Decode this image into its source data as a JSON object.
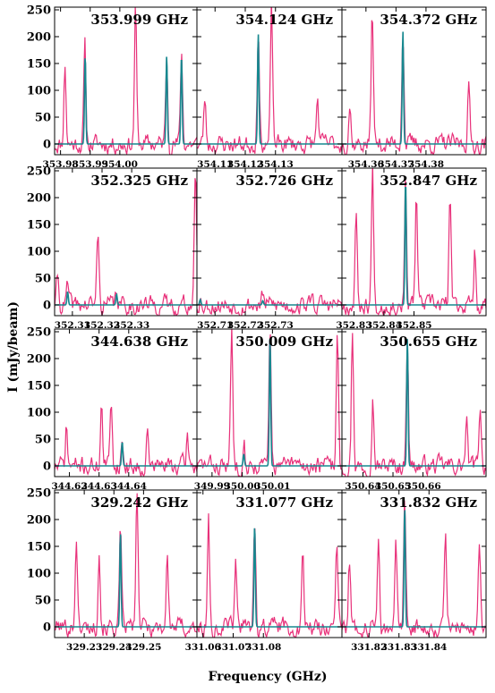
{
  "colors": {
    "observed": "#e8317a",
    "model": "#17888f",
    "axis": "#000000"
  },
  "chart_data": {
    "type": "line",
    "layout": "4x3 grid of spectral line panels",
    "xlabel": "Frequency (GHz)",
    "ylabel": "I (mJy/beam)",
    "ylim": [
      -20,
      255
    ],
    "y_ticks": [
      "0",
      "50",
      "100",
      "150",
      "200",
      "250"
    ],
    "series_legend": [],
    "panels": [
      {
        "title": "353.999 GHz",
        "xlim": [
          353.978,
          354.026
        ],
        "x_ticks": [
          "353.98",
          "353.99",
          "354.00"
        ],
        "x_tick_values": [
          353.98,
          353.99,
          354.0
        ],
        "model_peaks": [
          [
            353.9883,
            165
          ],
          [
            354.0158,
            165
          ],
          [
            354.0208,
            165
          ]
        ],
        "observed_peaks": [
          [
            353.9815,
            150
          ],
          [
            353.9882,
            180
          ],
          [
            354.0053,
            255
          ],
          [
            354.0158,
            163
          ],
          [
            354.0208,
            172
          ]
        ],
        "seed": 11
      },
      {
        "title": "354.124 GHz",
        "xlim": [
          354.104,
          354.152
        ],
        "x_ticks": [
          "354.11",
          "354.12",
          "354.13"
        ],
        "x_tick_values": [
          354.11,
          354.12,
          354.13
        ],
        "model_peaks": [
          [
            354.1243,
            205
          ]
        ],
        "observed_peaks": [
          [
            354.1066,
            85
          ],
          [
            354.1243,
            215
          ],
          [
            354.1287,
            255
          ],
          [
            354.1439,
            85
          ]
        ],
        "seed": 23
      },
      {
        "title": "354.372 GHz",
        "xlim": [
          354.352,
          354.4
        ],
        "x_ticks": [
          "354.36",
          "354.37",
          "354.38"
        ],
        "x_tick_values": [
          354.36,
          354.37,
          354.38
        ],
        "model_peaks": [
          [
            354.3723,
            210
          ]
        ],
        "observed_peaks": [
          [
            354.3546,
            75
          ],
          [
            354.3621,
            255
          ],
          [
            354.3723,
            215
          ],
          [
            354.3942,
            110
          ]
        ],
        "seed": 37
      },
      {
        "title": "352.325 GHz",
        "xlim": [
          352.304,
          352.352
        ],
        "x_ticks": [
          "352.31",
          "352.32",
          "352.33"
        ],
        "x_tick_values": [
          352.31,
          352.32,
          352.33
        ],
        "model_peaks": [
          [
            352.3084,
            25
          ],
          [
            352.3249,
            20
          ]
        ],
        "observed_peaks": [
          [
            352.305,
            55
          ],
          [
            352.3084,
            35
          ],
          [
            352.3186,
            140
          ],
          [
            352.3249,
            22
          ],
          [
            352.3515,
            255
          ]
        ],
        "seed": 41
      },
      {
        "title": "352.726 GHz",
        "xlim": [
          352.704,
          352.752
        ],
        "x_ticks": [
          "352.71",
          "352.72",
          "352.73"
        ],
        "x_tick_values": [
          352.71,
          352.72,
          352.73
        ],
        "model_peaks": [
          [
            352.7051,
            10
          ],
          [
            352.7258,
            8
          ]
        ],
        "observed_peaks": [
          [
            352.7051,
            12
          ],
          [
            352.7258,
            18
          ],
          [
            352.742,
            20
          ]
        ],
        "seed": 53
      },
      {
        "title": "352.847 GHz",
        "xlim": [
          352.826,
          352.874
        ],
        "x_ticks": [
          "352.83",
          "352.84",
          "352.85"
        ],
        "x_tick_values": [
          352.83,
          352.84,
          352.85
        ],
        "model_peaks": [
          [
            352.8472,
            232
          ]
        ],
        "observed_peaks": [
          [
            352.8307,
            175
          ],
          [
            352.8362,
            255
          ],
          [
            352.8472,
            230
          ],
          [
            352.8508,
            210
          ],
          [
            352.862,
            205
          ],
          [
            352.8703,
            105
          ]
        ],
        "seed": 67
      },
      {
        "title": "344.638 GHz",
        "xlim": [
          344.615,
          344.663
        ],
        "x_ticks": [
          "344.62",
          "344.63",
          "344.64"
        ],
        "x_tick_values": [
          344.62,
          344.63,
          344.64
        ],
        "model_peaks": [
          [
            344.6378,
            45
          ]
        ],
        "observed_peaks": [
          [
            344.619,
            70
          ],
          [
            344.6308,
            115
          ],
          [
            344.6341,
            125
          ],
          [
            344.6378,
            45
          ],
          [
            344.6463,
            60
          ],
          [
            344.6598,
            55
          ]
        ],
        "seed": 71
      },
      {
        "title": "350.009 GHz",
        "xlim": [
          349.985,
          350.033
        ],
        "x_ticks": [
          "349.99",
          "350.00",
          "350.01"
        ],
        "x_tick_values": [
          349.99,
          350.0,
          350.01
        ],
        "model_peaks": [
          [
            350.0005,
            22
          ],
          [
            350.0092,
            240
          ]
        ],
        "observed_peaks": [
          [
            349.9965,
            255
          ],
          [
            350.0005,
            60
          ],
          [
            350.0092,
            250
          ],
          [
            350.0315,
            255
          ]
        ],
        "seed": 83
      },
      {
        "title": "350.655 GHz",
        "xlim": [
          350.633,
          350.681
        ],
        "x_ticks": [
          "350.64",
          "350.65",
          "350.66"
        ],
        "x_tick_values": [
          350.64,
          350.65,
          350.66
        ],
        "model_peaks": [
          [
            350.6548,
            240
          ]
        ],
        "observed_peaks": [
          [
            350.6365,
            255
          ],
          [
            350.6433,
            130
          ],
          [
            350.6548,
            250
          ],
          [
            350.6745,
            80
          ],
          [
            350.679,
            120
          ]
        ],
        "seed": 97
      },
      {
        "title": "329.242 GHz",
        "xlim": [
          329.22,
          329.268
        ],
        "x_ticks": [
          "329.23",
          "329.24",
          "329.25"
        ],
        "x_tick_values": [
          329.23,
          329.24,
          329.25
        ],
        "model_peaks": [
          [
            329.2422,
            175
          ]
        ],
        "observed_peaks": [
          [
            329.2273,
            170
          ],
          [
            329.235,
            150
          ],
          [
            329.2422,
            175
          ],
          [
            329.2478,
            255
          ],
          [
            329.258,
            135
          ]
        ],
        "seed": 101
      },
      {
        "title": "331.077 GHz",
        "xlim": [
          331.058,
          331.106
        ],
        "x_ticks": [
          "331.06",
          "331.07",
          "331.08"
        ],
        "x_tick_values": [
          331.06,
          331.07,
          331.08
        ],
        "model_peaks": [
          [
            331.0771,
            190
          ]
        ],
        "observed_peaks": [
          [
            331.0618,
            210
          ],
          [
            331.0708,
            120
          ],
          [
            331.0771,
            200
          ],
          [
            331.093,
            135
          ],
          [
            331.1043,
            150
          ]
        ],
        "seed": 113
      },
      {
        "title": "331.832 GHz",
        "xlim": [
          331.811,
          331.859
        ],
        "x_ticks": [
          "331.82",
          "331.83",
          "331.84"
        ],
        "x_tick_values": [
          331.82,
          331.83,
          331.84
        ],
        "model_peaks": [
          [
            331.8319,
            225
          ]
        ],
        "observed_peaks": [
          [
            331.8135,
            125
          ],
          [
            331.8232,
            175
          ],
          [
            331.829,
            145
          ],
          [
            331.8319,
            235
          ],
          [
            331.8455,
            180
          ],
          [
            331.8568,
            160
          ]
        ],
        "seed": 127
      }
    ]
  }
}
